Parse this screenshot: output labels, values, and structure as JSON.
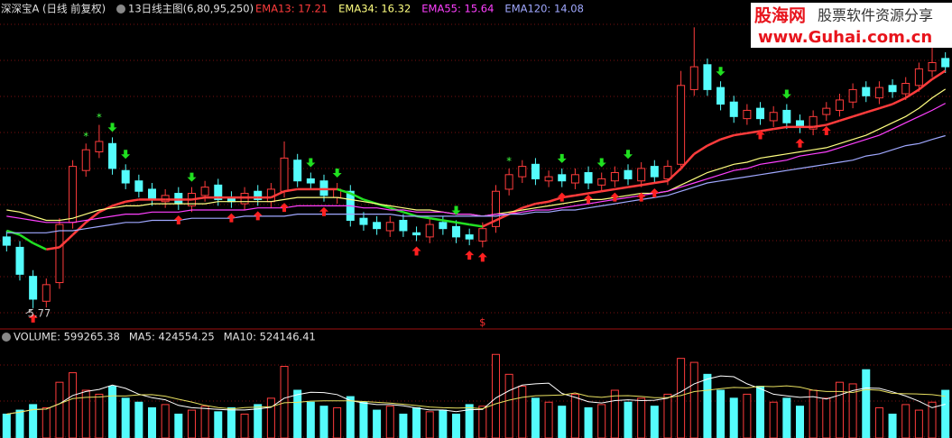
{
  "chart_data": [
    {
      "type": "candlestick",
      "title": "深深宝A (日线 前复权)",
      "subtitle": "13日线主图(6,80,95,250)",
      "ylim": [
        5.2,
        20.4
      ],
      "up_color": "#ff3c3c",
      "down_color": "#54fcfc",
      "open": [
        9.2,
        8.7,
        7.3,
        6.1,
        7.0,
        9.9,
        12.4,
        13.3,
        13.7,
        12.4,
        11.9,
        11.5,
        10.9,
        11.3,
        10.7,
        11.2,
        11.7,
        11.1,
        10.8,
        11.4,
        10.9,
        11.4,
        12.9,
        12.0,
        11.9,
        11.1,
        11.4,
        10.1,
        9.9,
        9.5,
        10.0,
        9.4,
        9.2,
        9.9,
        9.7,
        9.3,
        9.0,
        9.7,
        11.5,
        12.1,
        12.7,
        11.9,
        12.2,
        11.8,
        12.3,
        11.7,
        11.9,
        12.4,
        11.9,
        12.6,
        12.0,
        12.7,
        16.3,
        17.5,
        16.4,
        15.7,
        14.9,
        15.4,
        14.8,
        15.3,
        14.8,
        14.4,
        15.1,
        15.3,
        15.7,
        16.4,
        15.9,
        16.5,
        16.1,
        16.5,
        17.2,
        17.8
      ],
      "high": [
        9.5,
        9.0,
        7.6,
        7.2,
        10.1,
        12.9,
        13.7,
        14.6,
        14.0,
        12.7,
        12.2,
        11.8,
        11.5,
        11.6,
        11.6,
        11.9,
        12.0,
        11.4,
        11.6,
        11.7,
        11.8,
        13.8,
        13.2,
        12.3,
        12.2,
        11.8,
        11.7,
        10.4,
        10.2,
        10.2,
        10.3,
        9.7,
        10.1,
        10.2,
        10.0,
        9.6,
        9.9,
        11.7,
        12.5,
        12.9,
        13.0,
        12.4,
        12.5,
        12.5,
        12.6,
        12.3,
        12.6,
        12.7,
        12.8,
        12.9,
        12.9,
        17.2,
        19.3,
        17.8,
        16.7,
        16.0,
        15.6,
        15.7,
        15.5,
        15.6,
        15.1,
        15.3,
        15.7,
        16.1,
        16.6,
        16.7,
        16.7,
        16.8,
        16.9,
        17.6,
        18.6,
        18.1
      ],
      "low": [
        8.5,
        7.1,
        5.77,
        5.8,
        6.7,
        9.6,
        12.1,
        13.0,
        12.2,
        11.5,
        11.1,
        10.7,
        10.6,
        10.5,
        10.4,
        10.9,
        10.7,
        10.6,
        10.5,
        10.7,
        10.6,
        11.1,
        11.6,
        11.5,
        10.9,
        10.8,
        9.7,
        9.5,
        9.3,
        9.2,
        9.2,
        9.0,
        8.9,
        9.3,
        8.9,
        8.8,
        8.7,
        9.4,
        11.2,
        11.8,
        11.7,
        11.6,
        11.6,
        11.5,
        11.5,
        11.4,
        11.6,
        11.7,
        11.6,
        11.8,
        11.7,
        12.4,
        16.0,
        16.0,
        15.3,
        14.7,
        14.6,
        14.6,
        14.5,
        14.4,
        14.2,
        14.1,
        14.8,
        15.0,
        15.4,
        15.7,
        15.6,
        15.9,
        15.8,
        16.2,
        16.9,
        17.1
      ],
      "close": [
        8.8,
        7.4,
        6.2,
        6.9,
        9.8,
        12.6,
        13.4,
        13.8,
        12.5,
        11.8,
        11.4,
        11.0,
        11.2,
        10.8,
        11.3,
        11.6,
        11.0,
        10.9,
        11.3,
        11.0,
        11.5,
        13.0,
        11.9,
        11.8,
        11.2,
        11.5,
        10.0,
        9.8,
        9.6,
        9.9,
        9.5,
        9.3,
        9.8,
        9.6,
        9.2,
        9.1,
        9.6,
        11.4,
        12.2,
        12.6,
        12.0,
        12.1,
        11.9,
        12.2,
        11.8,
        12.0,
        12.3,
        12.0,
        12.5,
        12.1,
        12.6,
        16.5,
        17.4,
        16.3,
        15.6,
        15.0,
        15.3,
        14.9,
        15.2,
        14.7,
        14.5,
        15.0,
        15.4,
        15.8,
        16.3,
        16.0,
        16.4,
        16.2,
        16.6,
        17.3,
        17.6,
        17.4
      ],
      "low_label_at": 2,
      "marker": "$",
      "marker_at": 36,
      "star": "*",
      "star_at": [
        6,
        7,
        38
      ],
      "buy_at": [
        2,
        13,
        17,
        19,
        21,
        24,
        31,
        35,
        36,
        42,
        44,
        46,
        48,
        49,
        57,
        60,
        62
      ],
      "sell_at": [
        8,
        9,
        14,
        23,
        25,
        34,
        42,
        45,
        47,
        54,
        59
      ],
      "series": [
        {
          "name": "EMA13: 17.21",
          "color": "#ff3c3c",
          "down_color": "#22e022",
          "values": [
            9.5,
            9.3,
            8.9,
            8.6,
            8.7,
            9.3,
            9.9,
            10.4,
            10.7,
            10.9,
            11.0,
            11.0,
            11.0,
            11.0,
            11.0,
            11.1,
            11.1,
            11.1,
            11.1,
            11.1,
            11.1,
            11.4,
            11.5,
            11.5,
            11.5,
            11.5,
            11.3,
            11.0,
            10.8,
            10.6,
            10.4,
            10.2,
            10.1,
            10.0,
            9.9,
            9.8,
            9.7,
            10.0,
            10.3,
            10.6,
            10.8,
            10.9,
            11.1,
            11.2,
            11.3,
            11.4,
            11.5,
            11.6,
            11.7,
            11.8,
            11.9,
            12.5,
            13.2,
            13.6,
            13.9,
            14.1,
            14.2,
            14.3,
            14.4,
            14.5,
            14.5,
            14.5,
            14.6,
            14.8,
            15.0,
            15.2,
            15.4,
            15.6,
            15.9,
            16.3,
            16.8,
            17.21
          ]
        },
        {
          "name": "EMA34: 16.32",
          "color": "#ffff80",
          "values": [
            10.5,
            10.4,
            10.2,
            10.0,
            10.0,
            10.1,
            10.3,
            10.5,
            10.6,
            10.7,
            10.7,
            10.8,
            10.8,
            10.8,
            10.8,
            10.8,
            10.9,
            10.9,
            10.9,
            10.9,
            10.9,
            11.0,
            11.1,
            11.1,
            11.1,
            11.1,
            11.0,
            10.9,
            10.8,
            10.7,
            10.6,
            10.5,
            10.5,
            10.4,
            10.3,
            10.3,
            10.2,
            10.3,
            10.4,
            10.5,
            10.6,
            10.7,
            10.8,
            10.9,
            11.0,
            11.0,
            11.1,
            11.2,
            11.3,
            11.3,
            11.4,
            11.7,
            12.0,
            12.3,
            12.5,
            12.7,
            12.8,
            13.0,
            13.1,
            13.2,
            13.3,
            13.4,
            13.5,
            13.7,
            13.9,
            14.1,
            14.4,
            14.7,
            15.0,
            15.4,
            15.9,
            16.32
          ]
        },
        {
          "name": "EMA55: 15.64",
          "color": "#ff40ff",
          "values": [
            10.2,
            10.1,
            10.0,
            9.9,
            9.9,
            9.9,
            10.0,
            10.1,
            10.2,
            10.3,
            10.3,
            10.4,
            10.4,
            10.4,
            10.5,
            10.5,
            10.5,
            10.5,
            10.5,
            10.6,
            10.6,
            10.6,
            10.7,
            10.7,
            10.7,
            10.7,
            10.7,
            10.6,
            10.6,
            10.5,
            10.5,
            10.4,
            10.4,
            10.4,
            10.3,
            10.3,
            10.2,
            10.3,
            10.3,
            10.4,
            10.5,
            10.5,
            10.6,
            10.7,
            10.8,
            10.9,
            11.0,
            11.1,
            11.2,
            11.3,
            11.4,
            11.6,
            11.8,
            12.0,
            12.2,
            12.4,
            12.5,
            12.7,
            12.8,
            12.9,
            13.1,
            13.2,
            13.3,
            13.5,
            13.7,
            13.9,
            14.1,
            14.4,
            14.7,
            15.0,
            15.3,
            15.64
          ]
        },
        {
          "name": "EMA120: 14.08",
          "color": "#a0a8ff",
          "values": [
            9.4,
            9.4,
            9.4,
            9.4,
            9.5,
            9.5,
            9.6,
            9.7,
            9.8,
            9.9,
            9.9,
            10.0,
            10.0,
            10.0,
            10.1,
            10.1,
            10.1,
            10.1,
            10.2,
            10.2,
            10.2,
            10.2,
            10.3,
            10.3,
            10.3,
            10.3,
            10.3,
            10.3,
            10.3,
            10.3,
            10.2,
            10.2,
            10.2,
            10.2,
            10.2,
            10.2,
            10.2,
            10.2,
            10.3,
            10.3,
            10.4,
            10.4,
            10.5,
            10.5,
            10.6,
            10.7,
            10.8,
            10.9,
            11.0,
            11.1,
            11.2,
            11.4,
            11.6,
            11.8,
            11.9,
            12.0,
            12.1,
            12.2,
            12.3,
            12.4,
            12.5,
            12.6,
            12.7,
            12.8,
            12.9,
            13.1,
            13.2,
            13.4,
            13.6,
            13.7,
            13.9,
            14.08
          ]
        }
      ]
    },
    {
      "type": "volume",
      "ylim": [
        0,
        1200000
      ],
      "series": [
        {
          "name": "VOLUME: 599265.38",
          "values": [
            300000,
            350000,
            420000,
            380000,
            700000,
            820000,
            600000,
            550000,
            650000,
            500000,
            450000,
            380000,
            420000,
            300000,
            350000,
            400000,
            330000,
            380000,
            300000,
            420000,
            500000,
            900000,
            600000,
            450000,
            400000,
            380000,
            520000,
            450000,
            350000,
            400000,
            300000,
            380000,
            330000,
            350000,
            300000,
            420000,
            400000,
            1050000,
            800000,
            650000,
            500000,
            450000,
            400000,
            550000,
            380000,
            420000,
            600000,
            450000,
            500000,
            400000,
            550000,
            1000000,
            950000,
            800000,
            600000,
            500000,
            550000,
            650000,
            450000,
            500000,
            400000,
            600000,
            500000,
            700000,
            680000,
            858000,
            380000,
            300000,
            420000,
            350000,
            450000,
            599265.38
          ]
        },
        {
          "name": "MA5: 424554.25",
          "color": "#ffffff",
          "values": [
            300000,
            325000,
            357000,
            363000,
            430000,
            534000,
            584000,
            610000,
            664000,
            624000,
            550000,
            506000,
            480000,
            410000,
            380000,
            370000,
            360000,
            352000,
            352000,
            366000,
            386000,
            500000,
            544000,
            574000,
            570000,
            546000,
            470000,
            440000,
            420000,
            420000,
            404000,
            376000,
            352000,
            352000,
            332000,
            356000,
            360000,
            504000,
            594000,
            664000,
            680000,
            690000,
            560000,
            510000,
            456000,
            440000,
            470000,
            480000,
            470000,
            474000,
            500000,
            580000,
            680000,
            740000,
            780000,
            770000,
            680000,
            620000,
            550000,
            530000,
            510000,
            520000,
            490000,
            540000,
            596000,
            628000,
            624000,
            580000,
            528000,
            462000,
            380000,
            424554.25
          ]
        },
        {
          "name": "MA10: 524146.41",
          "color": "#e8e060",
          "values": [
            300000,
            325000,
            357000,
            363000,
            430000,
            495000,
            510000,
            515000,
            530000,
            527000,
            542000,
            545000,
            525000,
            487000,
            452000,
            410000,
            383000,
            366000,
            381000,
            388000,
            393000,
            443000,
            448000,
            463000,
            468000,
            466000,
            468000,
            458000,
            448000,
            438000,
            425000,
            408000,
            389000,
            380000,
            376000,
            380000,
            368000,
            430000,
            476000,
            511000,
            531000,
            534000,
            541000,
            566000,
            524000,
            510000,
            530000,
            532000,
            522000,
            506000,
            508000,
            533000,
            583000,
            600000,
            620000,
            635000,
            630000,
            650000,
            645000,
            655000,
            640000,
            600000,
            584000,
            584000,
            572000,
            608000,
            600000,
            560000,
            556000,
            553000,
            544000,
            524146.41
          ]
        }
      ]
    }
  ],
  "watermark": {
    "brand": "股海网",
    "slogan": "股票软件资源分享",
    "url": "www.Guhai.com.cn"
  }
}
